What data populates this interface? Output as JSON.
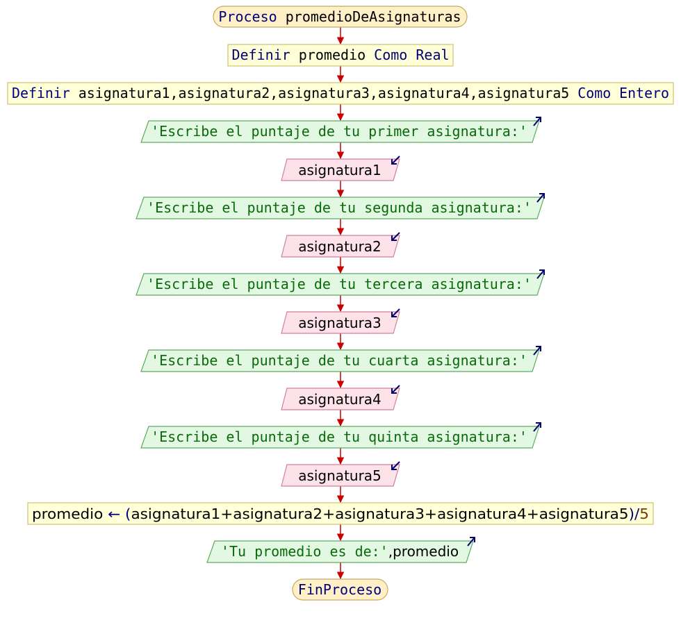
{
  "colors": {
    "process": "#fff0c8",
    "define": "#ffffd8",
    "output": "#e2f8e2",
    "input": "#fde2ea",
    "arrow": "#c80000",
    "io_icon": "#00006e",
    "border": "#ccb466"
  },
  "nodes": {
    "start": {
      "kw": "Proceso",
      "name": "promedioDeAsignaturas"
    },
    "def1": {
      "kw": "Definir",
      "vars": "promedio",
      "como": "Como",
      "type": "Real"
    },
    "def2": {
      "kw": "Definir",
      "vars": "asignatura1,asignatura2,asignatura3,asignatura4,asignatura5",
      "como": "Como",
      "type": "Entero"
    },
    "out1": "'Escribe el puntaje de tu primer asignatura:'",
    "in1": "asignatura1",
    "out2": "'Escribe el puntaje de tu segunda asignatura:'",
    "in2": "asignatura2",
    "out3": "'Escribe el puntaje de tu tercera asignatura:'",
    "in3": "asignatura3",
    "out4": "'Escribe el puntaje de tu cuarta asignatura:'",
    "in4": "asignatura4",
    "out5": "'Escribe el puntaje de tu quinta asignatura:'",
    "in5": "asignatura5",
    "assign": {
      "target": "promedio",
      "arrow": "←",
      "open": "(",
      "expr": "asignatura1+asignatura2+asignatura3+asignatura4+asignatura5",
      "close": ")",
      "div": "/",
      "num": "5"
    },
    "out6": {
      "str": "'Tu promedio es de:'",
      "rest": ",promedio"
    },
    "end": "FinProceso"
  }
}
